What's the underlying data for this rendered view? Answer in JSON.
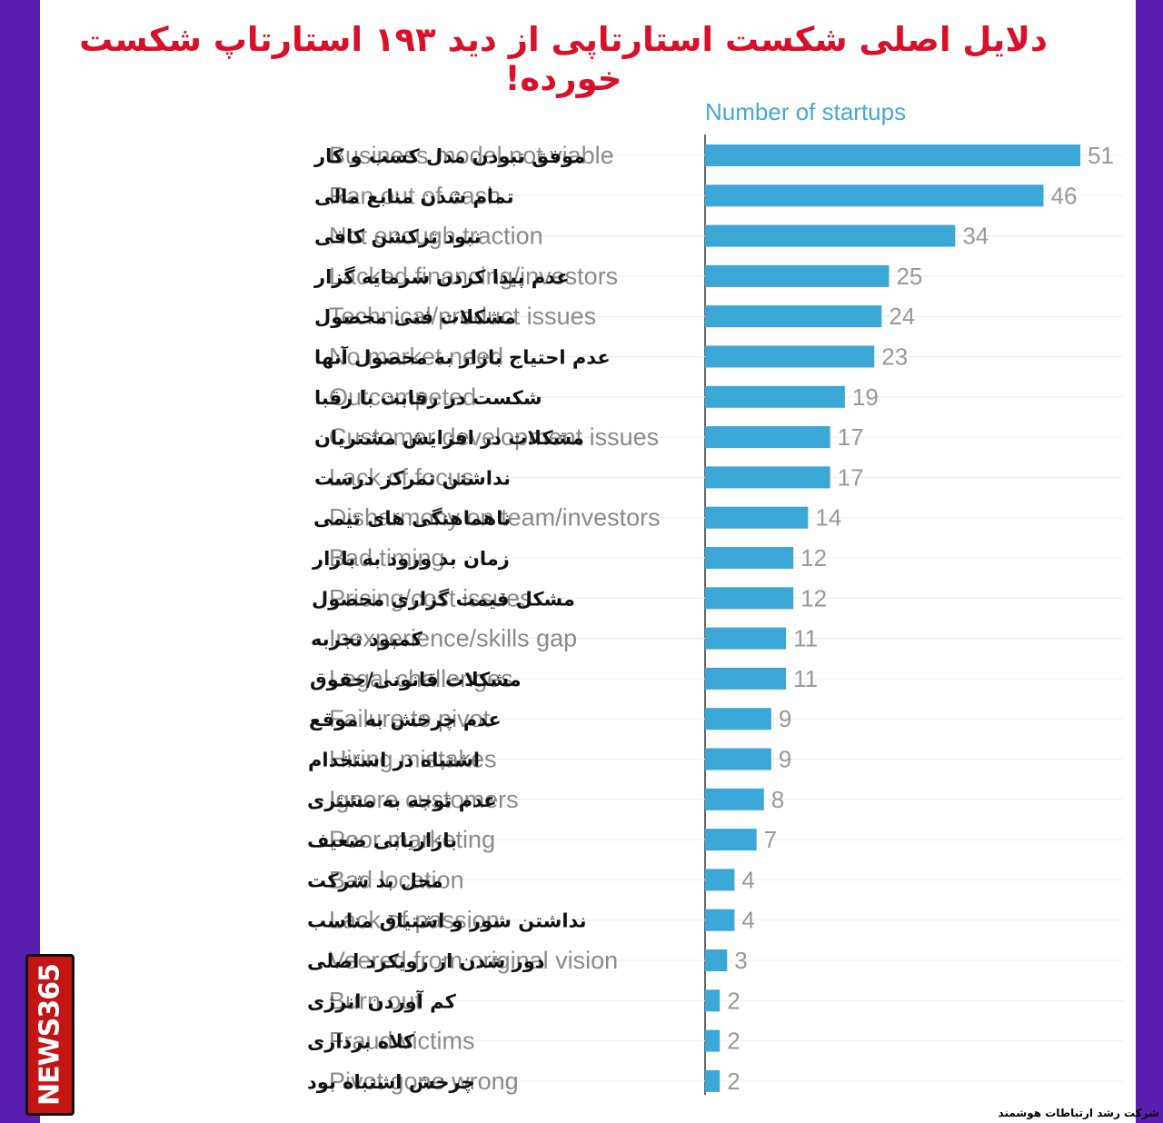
{
  "header": {
    "title": "دلایل اصلی شکست استارتاپی از دید ۱۹۳ استارتاپ شکست خورده!"
  },
  "branding": {
    "logo_text": "NEWS365",
    "footer_text": "شرکت رشد ارتباطات هوشمند"
  },
  "colors": {
    "bar": "#3aa7d6",
    "title": "#d8102a",
    "frame": "#5a1fb0"
  },
  "chart_data": {
    "type": "bar",
    "orientation": "horizontal",
    "xlabel": "Number of startups",
    "grid": false,
    "categories": [
      "Business model not viable",
      "Ran out of cash",
      "Not enough traction",
      "Lacked financing/investors",
      "Technical/product issues",
      "No market need",
      "Outcompeted",
      "Customer development issues",
      "Lack of focus",
      "Disharmony on team/investors",
      "Bad timing",
      "Pricing/cost issues",
      "Inexperience/skills gap",
      "Legal challenges",
      "Failure to pivot",
      "Hiring mistakes",
      "Ignore customers",
      "Poor marketing",
      "Bad location",
      "Lack of passion",
      "Veered from original vision",
      "Burn out",
      "Fraud victims",
      "Pivot gone wrong"
    ],
    "categories_fa": [
      "موفق نبودن مدل کسب و کار",
      "تمام شدن منابع مالی",
      "نبود ترکشن کافی",
      "عدم پیدا کردن سرمایه گزار",
      "مشکلات فنی محصول",
      "عدم احتیاج بازار به محصول آنها",
      "شکست در رقابت با رقبا",
      "مشکلات در افزایش مشتریان",
      "نداشتن تمرکز درست",
      "ناهماهنگی های تیمی",
      "زمان بد ورود به بازار",
      "مشکل قیمت گزاری محصول",
      "کمبود تجربه",
      "مشکلات قانونی/حقوق",
      "عدم چرخش به موقع",
      "اشتباه در استخدام",
      "عدم توجه به مشتری",
      "بازاریابی ضعیف",
      "محل بد شرکت",
      "نداشتن شور و اشتیاق مناسب",
      "دور شدن از رویکرد اصلی",
      "کم آوردن انرژی",
      "کلاه برداری",
      "چرخش اشتباه بود"
    ],
    "values": [
      51,
      46,
      34,
      25,
      24,
      23,
      19,
      17,
      17,
      14,
      12,
      12,
      11,
      11,
      9,
      9,
      8,
      7,
      4,
      4,
      3,
      2,
      2,
      2
    ],
    "xlim": [
      0,
      51
    ]
  }
}
